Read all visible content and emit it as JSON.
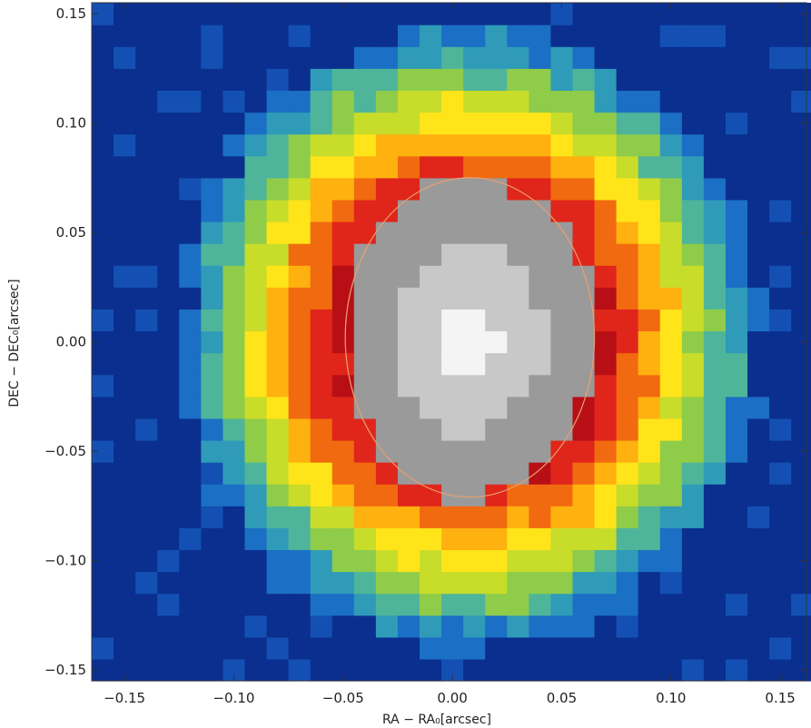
{
  "chart_data": {
    "type": "heatmap",
    "xlabel": "RA − RA₀[arcsec]",
    "ylabel": "DEC − DEC₀[arcsec]",
    "xlim": [
      -0.165,
      0.162
    ],
    "ylim": [
      -0.155,
      0.155
    ],
    "x_ticks": [
      -0.15,
      -0.1,
      -0.05,
      0.0,
      0.05,
      0.1,
      0.15
    ],
    "y_ticks": [
      -0.15,
      -0.1,
      -0.05,
      0.0,
      0.05,
      0.1,
      0.15
    ],
    "x_tick_labels": [
      "−0.15",
      "−0.10",
      "−0.05",
      "0.00",
      "0.05",
      "0.10",
      "0.15"
    ],
    "y_tick_labels": [
      "−0.15",
      "−0.10",
      "−0.05",
      "0.00",
      "0.05",
      "0.10",
      "0.15"
    ],
    "grid": false,
    "colormap": [
      "#0a2f8f",
      "#1450b4",
      "#1b6fc4",
      "#2f9bb8",
      "#4fb59a",
      "#8fcc4a",
      "#c8dc2a",
      "#ffe41a",
      "#ffb10f",
      "#f26a10",
      "#e0261a",
      "#b80f16",
      "#9a9a9a",
      "#c8c8c8",
      "#f4f4f4"
    ],
    "pixel_size_arcsec": 0.01,
    "center_offset": [
      0.008,
      0.002
    ],
    "core_radii": [
      0.057,
      0.073
    ],
    "ring_outer_radii": [
      0.132,
      0.142
    ],
    "contour_color": "#e8a070"
  }
}
